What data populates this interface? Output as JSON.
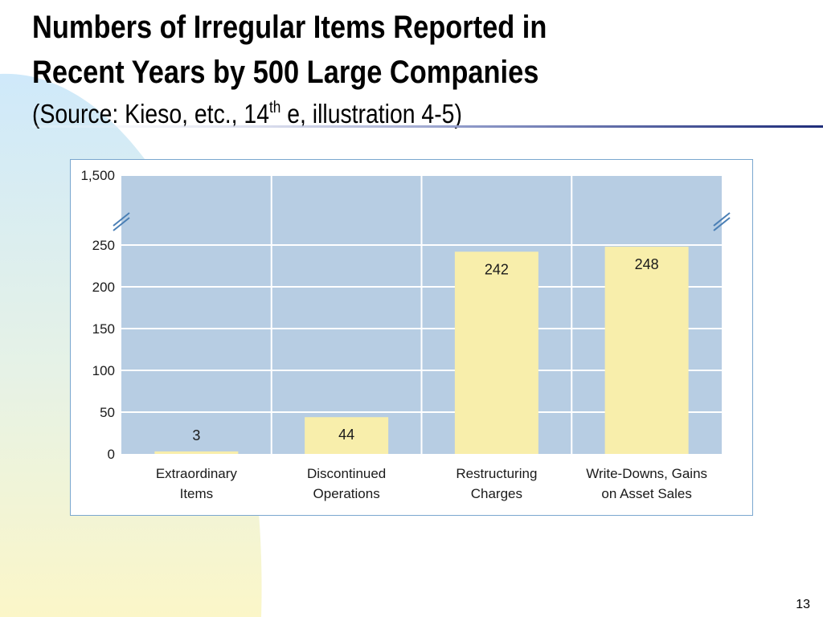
{
  "slide": {
    "title_line1": "Numbers of Irregular Items Reported in",
    "title_line2": "Recent Years by 500 Large Companies",
    "subtitle_before_sup": "(Source: Kieso, etc., 14",
    "subtitle_sup": "th",
    "subtitle_after_sup": " e, illustration 4-5)",
    "page_number": "13"
  },
  "colors": {
    "plot_background": "#b7cde3",
    "bar_fill": "#f8eeab",
    "gridline": "#ffffff",
    "accent_rule": "#1f2d7a",
    "decor_blue": "#cfe9fa",
    "decor_yellow": "#fbf6c8"
  },
  "chart_data": {
    "type": "bar",
    "categories": [
      [
        "Extraordinary",
        "Items"
      ],
      [
        "Discontinued",
        "Operations"
      ],
      [
        "Restructuring",
        "Charges"
      ],
      [
        "Write-Downs, Gains",
        "on Asset Sales"
      ]
    ],
    "values": [
      3,
      44,
      242,
      248
    ],
    "data_labels": [
      "3",
      "44",
      "242",
      "248"
    ],
    "y_ticks": [
      "0",
      "50",
      "100",
      "150",
      "200",
      "250"
    ],
    "y_break_top_label": "1,500",
    "ylim": [
      0,
      250
    ],
    "y_axis_broken": true,
    "grid": true,
    "legend": "none"
  }
}
